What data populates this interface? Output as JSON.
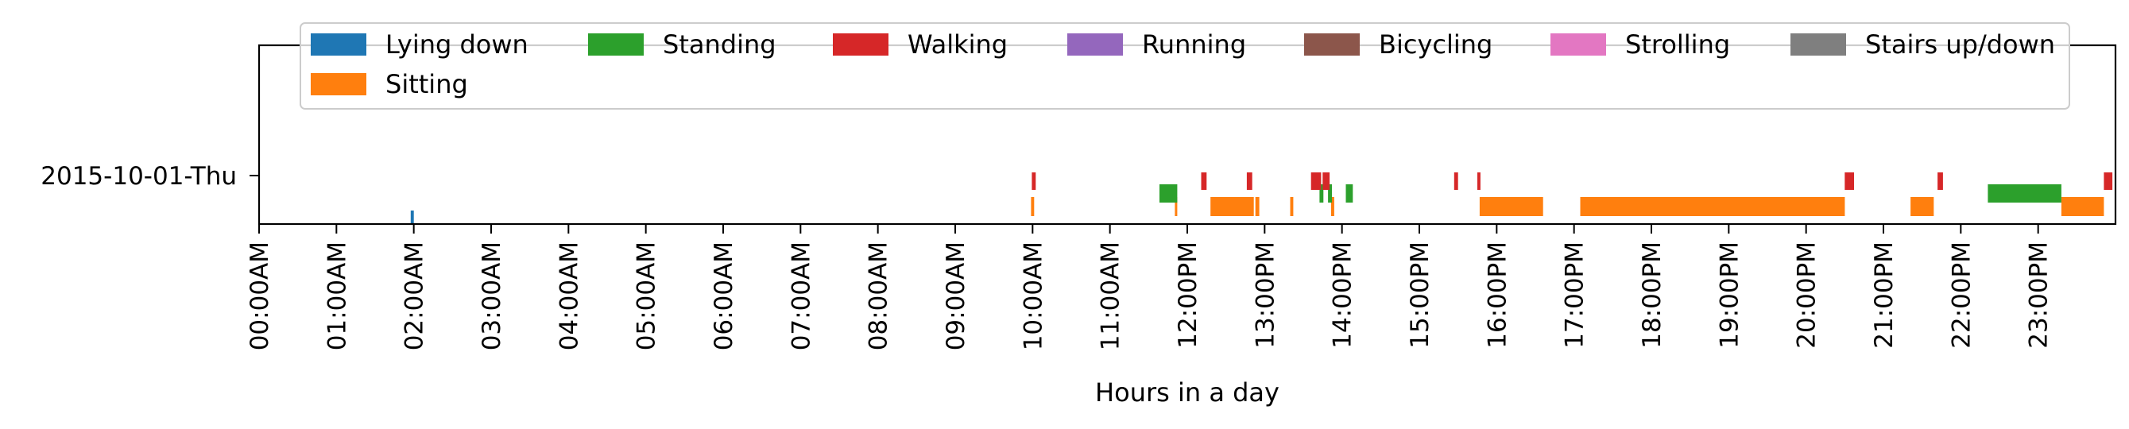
{
  "chart_data": {
    "type": "timeline",
    "title": "",
    "xlabel": "Hours in a day",
    "ylabel": "",
    "xlim": [
      0,
      24
    ],
    "x_unit": "hours",
    "x_tick_labels": [
      "00:00AM",
      "01:00AM",
      "02:00AM",
      "03:00AM",
      "04:00AM",
      "05:00AM",
      "06:00AM",
      "07:00AM",
      "08:00AM",
      "09:00AM",
      "10:00AM",
      "11:00AM",
      "12:00PM",
      "13:00PM",
      "14:00PM",
      "15:00PM",
      "16:00PM",
      "17:00PM",
      "18:00PM",
      "19:00PM",
      "20:00PM",
      "21:00PM",
      "22:00PM",
      "23:00PM"
    ],
    "y_categories": [
      "2015-10-01-Thu"
    ],
    "legend_position": "top",
    "grid": false,
    "activities": [
      {
        "name": "Lying down",
        "color": "#1f77b4",
        "intervals": [
          [
            1.96,
            2.0
          ]
        ]
      },
      {
        "name": "Sitting",
        "color": "#ff7f0e",
        "intervals": [
          [
            9.98,
            10.02
          ],
          [
            11.84,
            11.87
          ],
          [
            12.3,
            12.86
          ],
          [
            12.88,
            12.93
          ],
          [
            13.33,
            13.37
          ],
          [
            13.86,
            13.9
          ],
          [
            15.78,
            16.6
          ],
          [
            17.08,
            20.5
          ],
          [
            21.35,
            21.65
          ],
          [
            23.3,
            23.85
          ]
        ]
      },
      {
        "name": "Standing",
        "color": "#2ca02c",
        "intervals": [
          [
            11.64,
            11.87
          ],
          [
            13.71,
            13.76
          ],
          [
            13.82,
            13.87
          ],
          [
            14.05,
            14.14
          ],
          [
            22.35,
            23.3
          ]
        ]
      },
      {
        "name": "Walking",
        "color": "#d62728",
        "intervals": [
          [
            9.99,
            10.04
          ],
          [
            12.18,
            12.25
          ],
          [
            12.77,
            12.84
          ],
          [
            13.6,
            13.73
          ],
          [
            13.75,
            13.84
          ],
          [
            15.45,
            15.5
          ],
          [
            15.75,
            15.79
          ],
          [
            20.5,
            20.62
          ],
          [
            21.7,
            21.77
          ],
          [
            23.85,
            23.96
          ]
        ]
      },
      {
        "name": "Running",
        "color": "#9467bd",
        "intervals": []
      },
      {
        "name": "Bicycling",
        "color": "#8c564b",
        "intervals": []
      },
      {
        "name": "Strolling",
        "color": "#e377c2",
        "intervals": []
      },
      {
        "name": "Stairs up/down",
        "color": "#7f7f7f",
        "intervals": []
      }
    ]
  }
}
